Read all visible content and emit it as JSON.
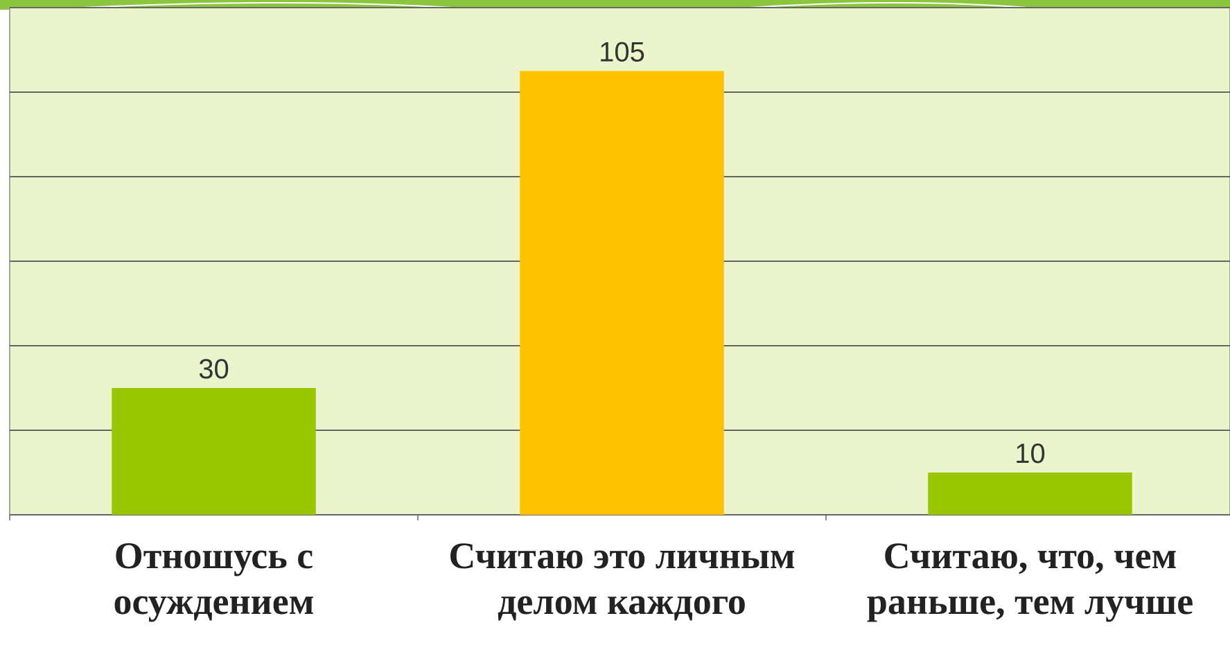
{
  "chart_data": {
    "type": "bar",
    "categories": [
      "Отношусь с осуждением",
      "Считаю это личным делом каждого",
      "Считаю, что, чем раньше, тем лучше"
    ],
    "values": [
      30,
      105,
      10
    ],
    "colors": [
      "#99c600",
      "#ffc000",
      "#99c600"
    ],
    "ylim": [
      0,
      120
    ],
    "yticks": [
      0,
      20,
      40,
      60,
      80,
      100,
      120
    ],
    "grid": true
  }
}
